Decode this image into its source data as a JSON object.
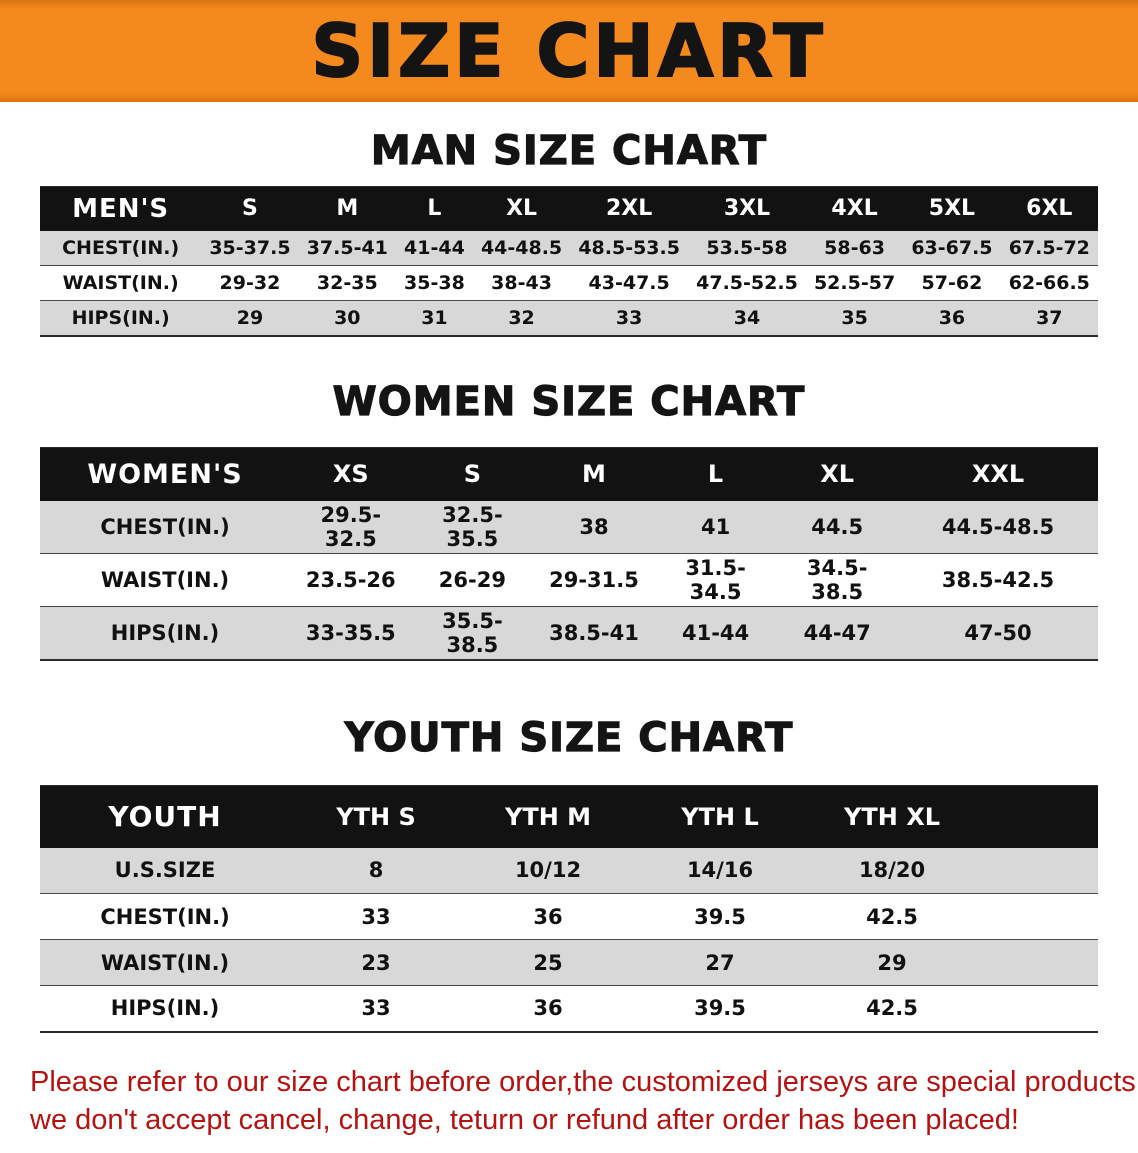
{
  "colors": {
    "banner-bg": "#F4891E",
    "header-bg": "#121212",
    "header-text": "#FFFFFF",
    "row-alt": "#D8D8D8",
    "text": "#111111",
    "disclaimer": "#B51212"
  },
  "banner": {
    "title": "SIZE CHART"
  },
  "sections": {
    "men": {
      "heading": "MAN SIZE CHART",
      "table": {
        "header": [
          "MEN'S",
          "S",
          "M",
          "L",
          "XL",
          "2XL",
          "3XL",
          "4XL",
          "5XL",
          "6XL"
        ],
        "rows": [
          [
            "CHEST(IN.)",
            "35-37.5",
            "37.5-41",
            "41-44",
            "44-48.5",
            "48.5-53.5",
            "53.5-58",
            "58-63",
            "63-67.5",
            "67.5-72"
          ],
          [
            "WAIST(IN.)",
            "29-32",
            "32-35",
            "35-38",
            "38-43",
            "43-47.5",
            "47.5-52.5",
            "52.5-57",
            "57-62",
            "62-66.5"
          ],
          [
            "HIPS(IN.)",
            "29",
            "30",
            "31",
            "32",
            "33",
            "34",
            "35",
            "36",
            "37"
          ]
        ]
      }
    },
    "women": {
      "heading": "WOMEN SIZE CHART",
      "table": {
        "header": [
          "WOMEN'S",
          "XS",
          "S",
          "M",
          "L",
          "XL",
          "XXL"
        ],
        "rows": [
          [
            "CHEST(IN.)",
            "29.5-32.5",
            "32.5-35.5",
            "38",
            "41",
            "44.5",
            "44.5-48.5"
          ],
          [
            "WAIST(IN.)",
            "23.5-26",
            "26-29",
            "29-31.5",
            "31.5-34.5",
            "34.5-38.5",
            "38.5-42.5"
          ],
          [
            "HIPS(IN.)",
            "33-35.5",
            "35.5-38.5",
            "38.5-41",
            "41-44",
            "44-47",
            "47-50"
          ]
        ]
      }
    },
    "youth": {
      "heading": "YOUTH SIZE CHART",
      "table": {
        "header": [
          "YOUTH",
          "YTH S",
          "YTH M",
          "YTH L",
          "YTH XL",
          ""
        ],
        "rows": [
          [
            "U.S.SIZE",
            "8",
            "10/12",
            "14/16",
            "18/20",
            ""
          ],
          [
            "CHEST(IN.)",
            "33",
            "36",
            "39.5",
            "42.5",
            ""
          ],
          [
            "WAIST(IN.)",
            "23",
            "25",
            "27",
            "29",
            ""
          ],
          [
            "HIPS(IN.)",
            "33",
            "36",
            "39.5",
            "42.5",
            ""
          ]
        ]
      }
    }
  },
  "disclaimer": {
    "line1": "Please refer to our size chart before order,the customized jerseys are special products,",
    "line2": "we don't accept cancel, change, teturn or refund after order has been placed!"
  }
}
